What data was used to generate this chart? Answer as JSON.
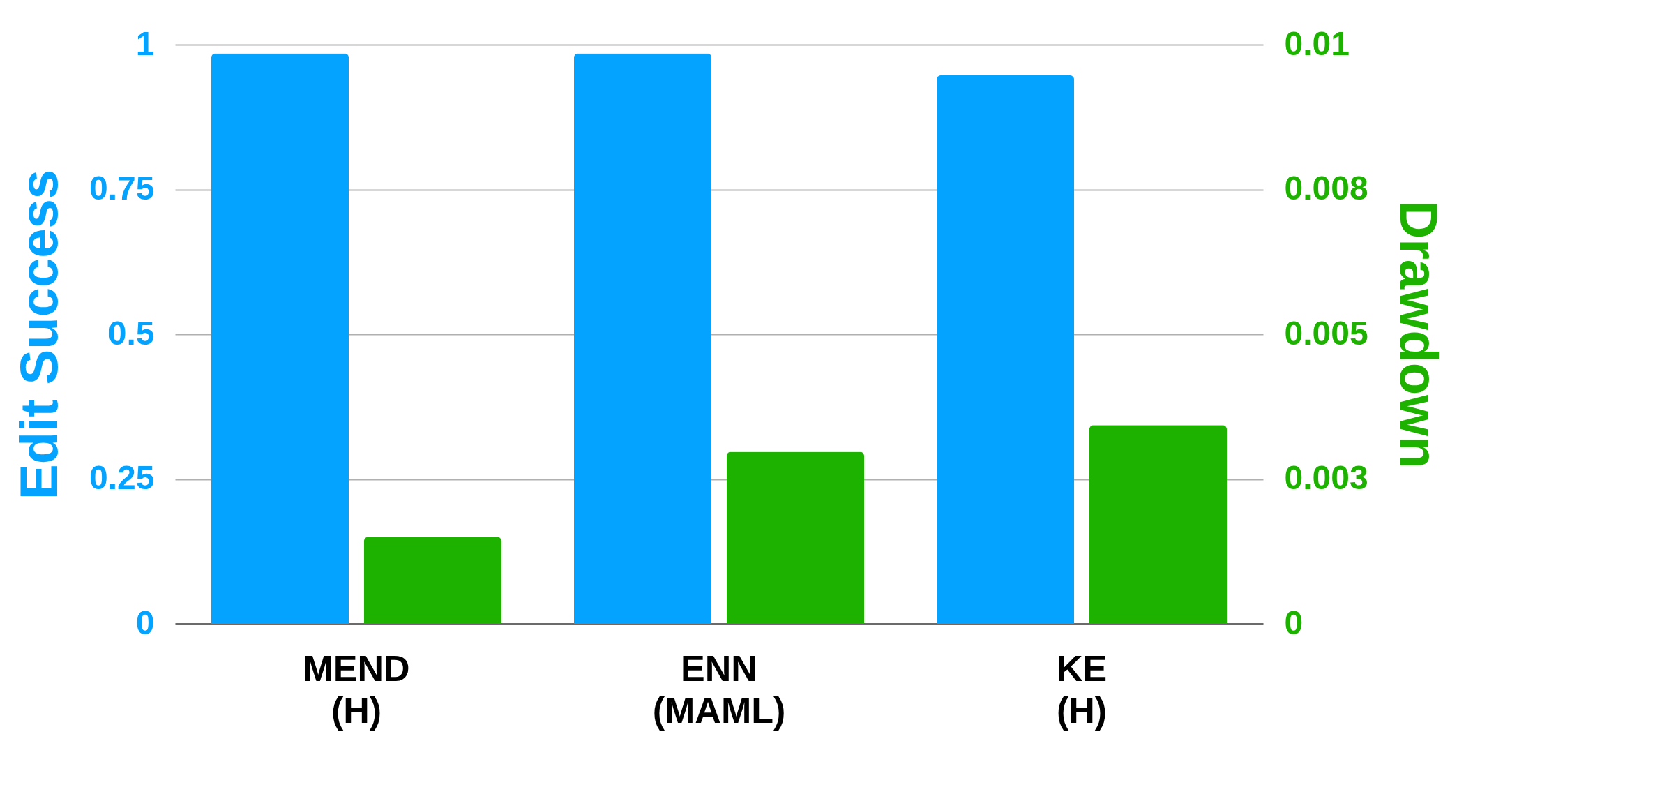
{
  "chart_data": {
    "type": "bar",
    "categories": [
      "MEND\n(H)",
      "ENN\n(MAML)",
      "KE\n(H)"
    ],
    "series": [
      {
        "color": "#03a3ff",
        "values": [
          0.985,
          0.985,
          0.947
        ]
      },
      {
        "color": "#1db100",
        "axis": "y2",
        "values": [
          0.0015,
          0.00297,
          0.00343
        ]
      }
    ],
    "ylabel": "Edit Success",
    "y2label": "Drawdown",
    "ylim": [
      0,
      1
    ],
    "yticks": [
      0,
      0.25,
      0.5,
      0.75,
      1
    ],
    "y2lim": [
      0,
      0.01
    ],
    "y2ticks": [
      0,
      {
        "value": 0.0025,
        "label": "0.003"
      },
      0.005,
      {
        "value": 0.0075,
        "label": "0.008"
      },
      0.01
    ],
    "grid": "y"
  }
}
